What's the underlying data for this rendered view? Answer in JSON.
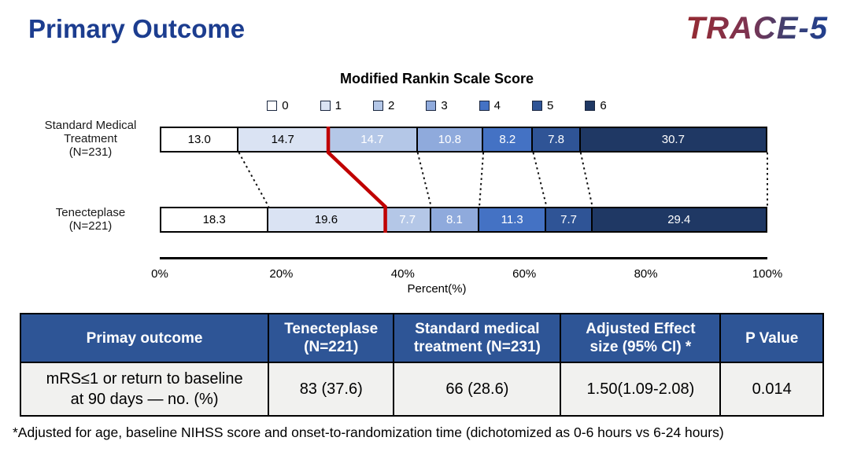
{
  "page": {
    "title": "Primary Outcome",
    "logo_text": "TRACE-5",
    "footnote": "*Adjusted for age, baseline NIHSS score and onset-to-randomization time (dichotomized as 0-6 hours vs 6-24 hours)",
    "colors": {
      "title_blue": "#1c3d8f",
      "table_header_blue": "#2e5596",
      "highlight_red": "#c00000"
    }
  },
  "chart_data": {
    "type": "bar",
    "variant": "horizontal-stacked",
    "title": "Modified Rankin Scale Score",
    "xlabel": "Percent(%)",
    "xlim": [
      0,
      100
    ],
    "x_ticks": [
      "0%",
      "20%",
      "40%",
      "60%",
      "80%",
      "100%"
    ],
    "categories": [
      "0",
      "1",
      "2",
      "3",
      "4",
      "5",
      "6"
    ],
    "category_colors": [
      "#ffffff",
      "#dae3f3",
      "#b4c7e7",
      "#8faadc",
      "#4472c4",
      "#2f5496",
      "#1f3864"
    ],
    "series": [
      {
        "name": "Standard Medical Treatment",
        "n_label": "(N=231)",
        "values": [
          13.0,
          14.7,
          14.7,
          10.8,
          8.2,
          7.8,
          30.7
        ]
      },
      {
        "name": "Tenecteplase",
        "n_label": "(N=221)",
        "values": [
          18.3,
          19.6,
          7.7,
          8.1,
          11.3,
          7.7,
          29.4
        ]
      }
    ],
    "divider_after_category": "1",
    "divider_color": "#c00000",
    "connector_style": "dotted"
  },
  "table": {
    "headers": [
      "Primay outcome",
      "Tenecteplase\n(N=221)",
      "Standard medical\ntreatment (N=231)",
      "Adjusted Effect\nsize (95% CI) *",
      "P Value"
    ],
    "rows": [
      [
        "mRS≤1 or  return to baseline\nat 90 days — no. (%)",
        "83 (37.6)",
        "66 (28.6)",
        "1.50(1.09-2.08)",
        "0.014"
      ]
    ]
  }
}
